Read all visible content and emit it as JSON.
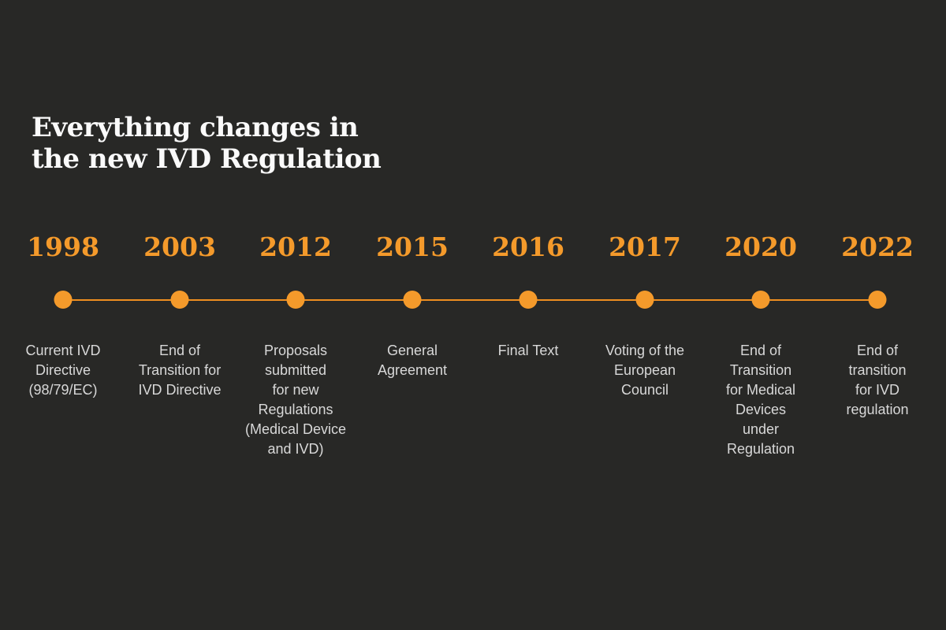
{
  "title": "Everything changes in\nthe new IVD Regulation",
  "colors": {
    "background": "#282826",
    "accent": "#F49A2B",
    "line": "#EF8E20",
    "title_color": "#FAFAFA",
    "label_color": "#D8D8D8"
  },
  "timeline": {
    "events": [
      {
        "year": "1998",
        "label": "Current IVD\nDirective\n(98/79/EC)"
      },
      {
        "year": "2003",
        "label": "End of\nTransition for\nIVD Directive"
      },
      {
        "year": "2012",
        "label": "Proposals\nsubmitted\nfor new\nRegulations\n(Medical Device\nand IVD)"
      },
      {
        "year": "2015",
        "label": "General\nAgreement"
      },
      {
        "year": "2016",
        "label": "Final Text"
      },
      {
        "year": "2017",
        "label": "Voting of the\nEuropean\nCouncil"
      },
      {
        "year": "2020",
        "label": "End of\nTransition\nfor Medical\nDevices\nunder\nRegulation"
      },
      {
        "year": "2022",
        "label": "End of\ntransition\nfor IVD\nregulation"
      }
    ]
  }
}
